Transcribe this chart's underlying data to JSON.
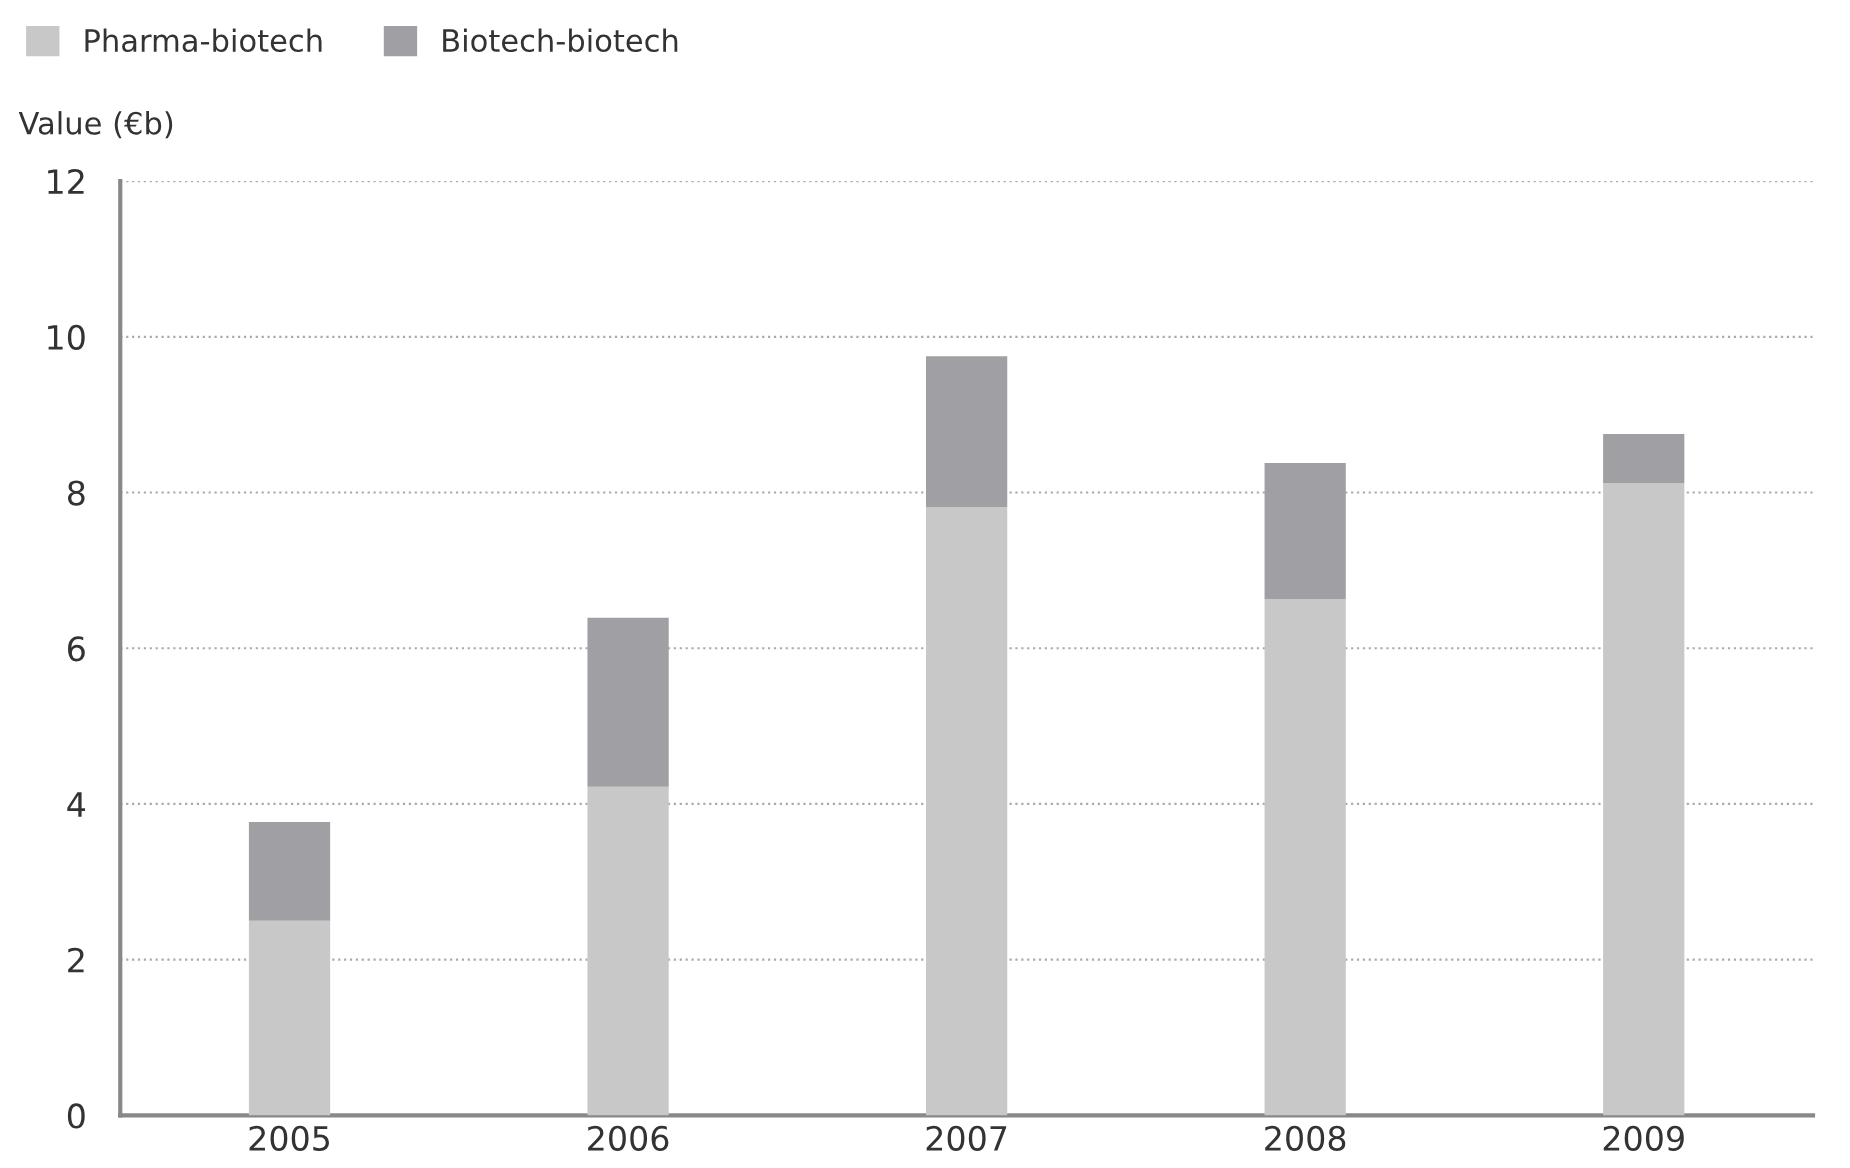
{
  "chart_data": {
    "type": "bar",
    "stacked": true,
    "ylabel": "Value (€b)",
    "categories": [
      "2005",
      "2006",
      "2007",
      "2008",
      "2009"
    ],
    "series": [
      {
        "name": "Pharma-biotech",
        "color": "#c8c8c9",
        "values": [
          2.5,
          4.22,
          7.81,
          6.63,
          8.12
        ]
      },
      {
        "name": "Biotech-biotech",
        "color": "#a09fa4",
        "values": [
          1.27,
          2.17,
          1.94,
          1.75,
          0.63
        ]
      }
    ],
    "ylim": [
      0,
      12
    ],
    "yticks": [
      0,
      2,
      4,
      6,
      8,
      10,
      12
    ],
    "grid": "y",
    "legend": "top left"
  }
}
